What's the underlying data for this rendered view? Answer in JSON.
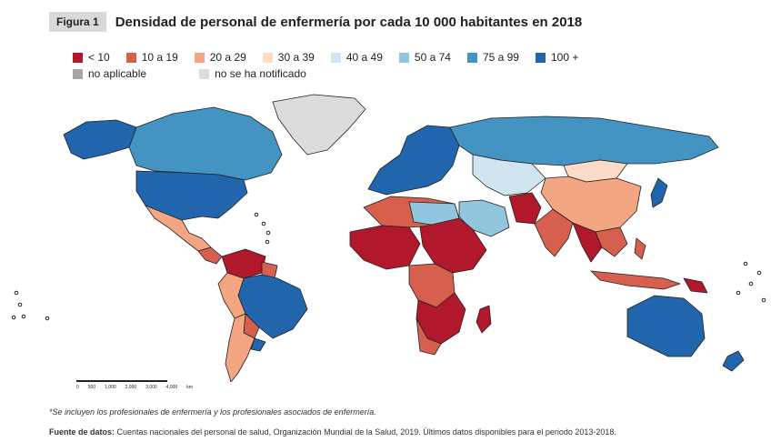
{
  "header": {
    "figure_label": "Figura 1",
    "title": "Densidad de personal de enfermería por cada 10 000 habitantes en 2018"
  },
  "legend": {
    "items": [
      {
        "label": "< 10",
        "color": "#b2182b"
      },
      {
        "label": "10 a 19",
        "color": "#d6604d"
      },
      {
        "label": "20 a 29",
        "color": "#f4a582"
      },
      {
        "label": "30 a 39",
        "color": "#fddbc7"
      },
      {
        "label": "40 a 49",
        "color": "#d1e5f0"
      },
      {
        "label": "50 a 74",
        "color": "#92c5de"
      },
      {
        "label": "75 a 99",
        "color": "#4393c3"
      },
      {
        "label": "100 +",
        "color": "#2166ac"
      },
      {
        "label": "no aplicable",
        "color": "#a6a6a6"
      },
      {
        "label": "no se ha notificado",
        "color": "#dcdcdc"
      }
    ]
  },
  "scale_bar": {
    "ticks": [
      "0",
      "500",
      "1,000",
      "2,000",
      "3,000",
      "4,000"
    ],
    "unit": "km"
  },
  "footer": {
    "note": "*Se incluyen los profesionales de enfermería y los profesionales asociados de enfermería.",
    "source_label": "Fuente de datos:",
    "source_text": "Cuentas nacionales del personal de salud, Organización Mundial de la Salud, 2019. Últimos datos disponibles para el periodo 2013-2018."
  }
}
